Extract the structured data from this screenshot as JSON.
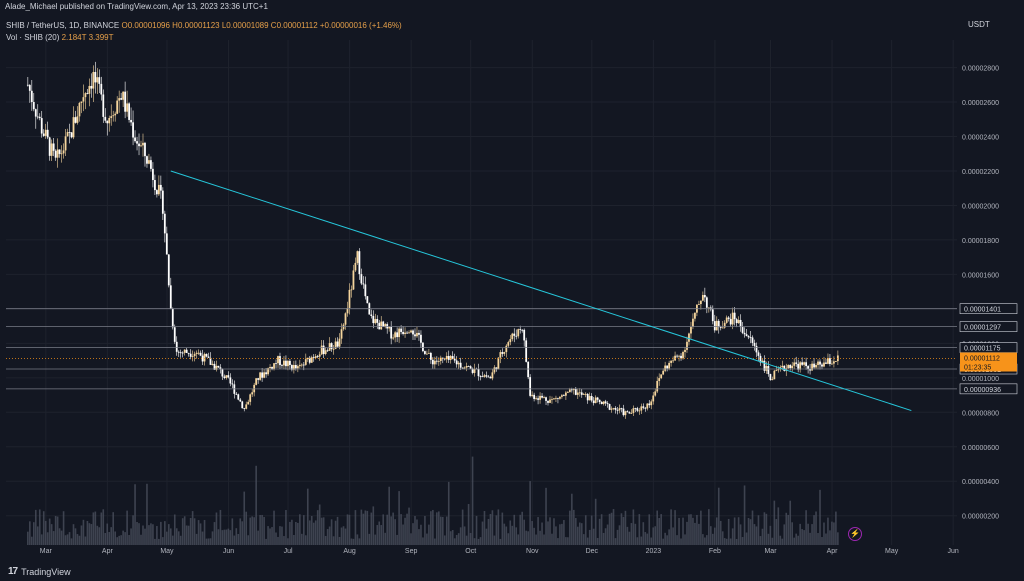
{
  "header": {
    "publisher_line": "Alade_Michael published on TradingView.com, Apr 13, 2023 23:36 UTC+1"
  },
  "legend": {
    "symbol": "SHIB / TetherUS, 1D, BINANCE",
    "ohlc": "O0.00001096 H0.00001123 L0.00001089 C0.00001112 +0.00000016 (+1.46%)",
    "volume_label": "Vol · SHIB (20)",
    "volume_values": "2.184T  3.399T"
  },
  "axis_unit": "USDT",
  "footer": {
    "brand": "TradingView"
  },
  "chart_data": {
    "type": "candlestick",
    "title": "SHIB / TetherUS, 1D, BINANCE",
    "ylabel": "USDT",
    "ylim": [
      4e-07,
      3e-06
    ],
    "x_tick_labels": [
      "Mar",
      "Apr",
      "May",
      "Jun",
      "Jul",
      "Aug",
      "Sep",
      "Oct",
      "Nov",
      "Dec",
      "2023",
      "Feb",
      "Mar",
      "Apr",
      "May",
      "Jun"
    ],
    "y_tick_labels": [
      "0.00002800",
      "0.00002600",
      "0.00002400",
      "0.00002200",
      "0.00002000",
      "0.00001800",
      "0.00001600",
      "0.00001400",
      "0.00001200",
      "0.00001000",
      "0.00000800",
      "0.00000600",
      "0.00000400",
      "0.00000200"
    ],
    "y_tick_values": [
      2.8e-05,
      2.6e-05,
      2.4e-05,
      2.2e-05,
      2e-05,
      1.8e-05,
      1.6e-05,
      1.4e-05,
      1.2e-05,
      1e-05,
      8e-06,
      6e-06,
      4e-06,
      2e-06
    ],
    "price_path": [
      [
        "2022-03-01",
        2.7e-05
      ],
      [
        "2022-03-08",
        2.45e-05
      ],
      [
        "2022-03-15",
        2.25e-05
      ],
      [
        "2022-03-22",
        2.4e-05
      ],
      [
        "2022-03-29",
        2.65e-05
      ],
      [
        "2022-04-03",
        2.75e-05
      ],
      [
        "2022-04-10",
        2.5e-05
      ],
      [
        "2022-04-17",
        2.65e-05
      ],
      [
        "2022-04-24",
        2.4e-05
      ],
      [
        "2022-05-01",
        2.25e-05
      ],
      [
        "2022-05-08",
        2e-05
      ],
      [
        "2022-05-12",
        1.4e-05
      ],
      [
        "2022-05-15",
        1.15e-05
      ],
      [
        "2022-05-25",
        1.15e-05
      ],
      [
        "2022-06-05",
        1.05e-05
      ],
      [
        "2022-06-12",
        9.5e-06
      ],
      [
        "2022-06-18",
        8.2e-06
      ],
      [
        "2022-06-25",
        1e-05
      ],
      [
        "2022-07-05",
        1.1e-05
      ],
      [
        "2022-07-15",
        1.05e-05
      ],
      [
        "2022-07-25",
        1.15e-05
      ],
      [
        "2022-08-05",
        1.2e-05
      ],
      [
        "2022-08-14",
        1.7e-05
      ],
      [
        "2022-08-20",
        1.35e-05
      ],
      [
        "2022-09-01",
        1.25e-05
      ],
      [
        "2022-09-10",
        1.3e-05
      ],
      [
        "2022-09-20",
        1.1e-05
      ],
      [
        "2022-10-01",
        1.1e-05
      ],
      [
        "2022-10-10",
        1.05e-05
      ],
      [
        "2022-10-20",
        1e-05
      ],
      [
        "2022-10-28",
        1.2e-05
      ],
      [
        "2022-11-05",
        1.3e-05
      ],
      [
        "2022-11-09",
        9e-06
      ],
      [
        "2022-11-20",
        8.7e-06
      ],
      [
        "2022-12-01",
        9.2e-06
      ],
      [
        "2022-12-15",
        8.5e-06
      ],
      [
        "2022-12-28",
        7.9e-06
      ],
      [
        "2023-01-08",
        8.5e-06
      ],
      [
        "2023-01-15",
        1.05e-05
      ],
      [
        "2023-01-25",
        1.15e-05
      ],
      [
        "2023-02-04",
        1.5e-05
      ],
      [
        "2023-02-10",
        1.3e-05
      ],
      [
        "2023-02-20",
        1.35e-05
      ],
      [
        "2023-03-01",
        1.2e-05
      ],
      [
        "2023-03-10",
        1e-05
      ],
      [
        "2023-03-20",
        1.08e-05
      ],
      [
        "2023-04-01",
        1.06e-05
      ],
      [
        "2023-04-13",
        1.11e-05
      ]
    ],
    "horizontal_levels": [
      1.401e-05,
      1.297e-05,
      1.175e-05,
      1.051e-05,
      9.36e-06
    ],
    "trendline": {
      "from": [
        "2022-05-12",
        2.2e-05
      ],
      "to": [
        "2023-05-20",
        8.1e-06
      ]
    },
    "price_labels": [
      "0.00001401",
      "0.00001297",
      "0.00001175",
      "0.00001112",
      "01:23:35",
      "0.00001051",
      "0.00000936"
    ],
    "current_price": 1.112e-05,
    "current_price_label": "0.00001112",
    "countdown_label": "01:23:35",
    "colors": {
      "up": "#f5d59d",
      "down": "#ffffff",
      "trendline": "#26c6da",
      "levels": "#787b86",
      "current": "#f7931a",
      "grid": "#1e222d",
      "volume": "#4a4f5c"
    }
  }
}
